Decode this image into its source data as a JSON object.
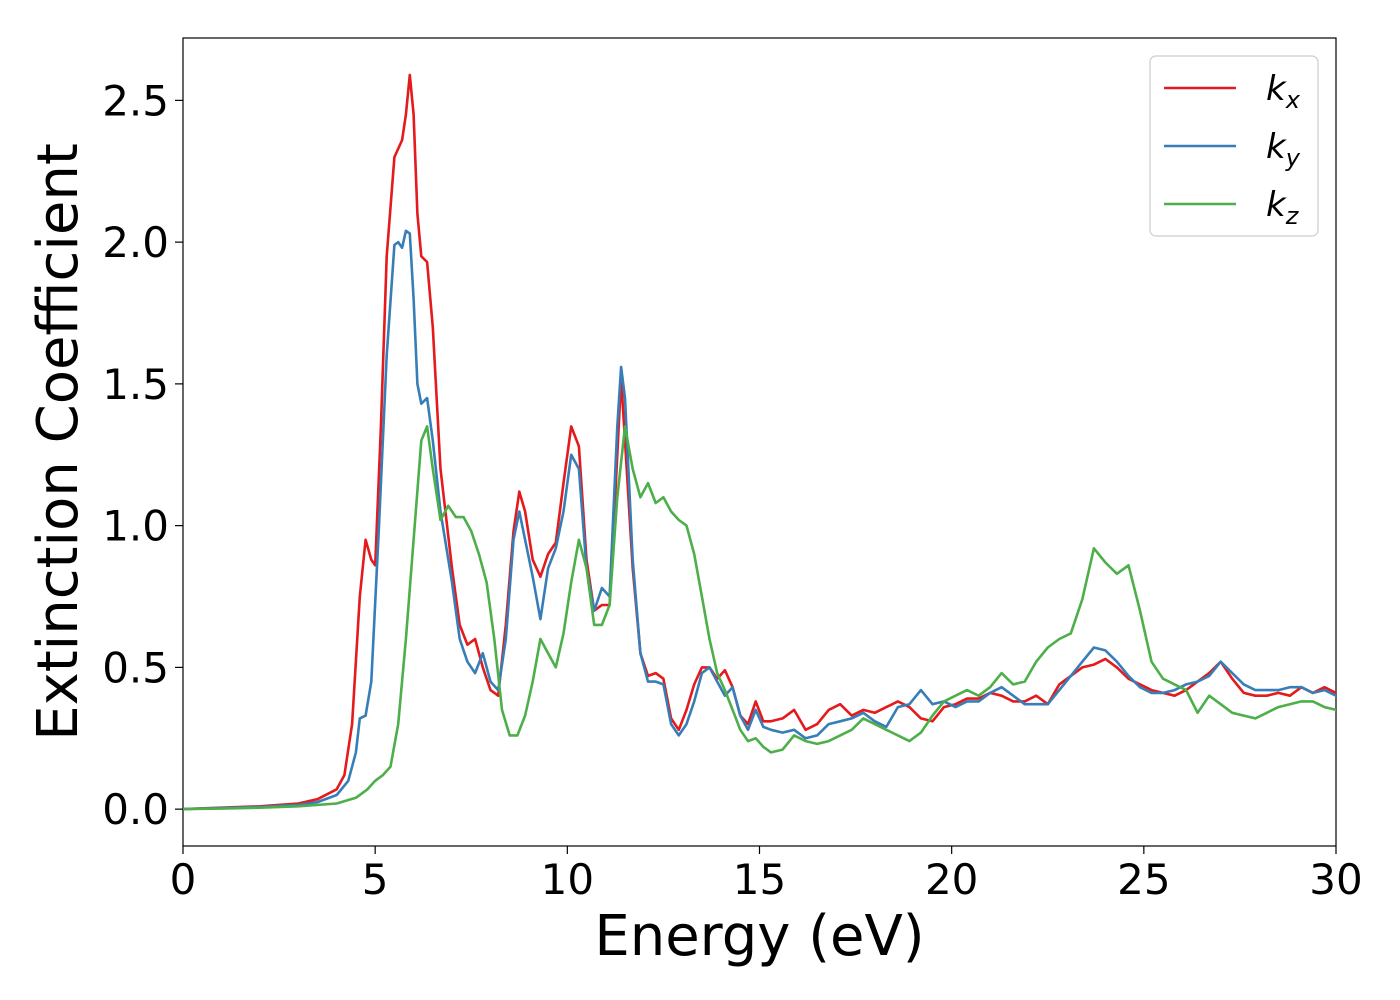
{
  "chart_data": {
    "type": "line",
    "title": "",
    "xlabel": "Energy (eV)",
    "ylabel": "Extinction Coefficient",
    "xlim": [
      0,
      30
    ],
    "ylim": [
      -0.13,
      2.72
    ],
    "xticks": [
      0,
      5,
      10,
      15,
      20,
      25,
      30
    ],
    "yticks": [
      0.0,
      0.5,
      1.0,
      1.5,
      2.0,
      2.5
    ],
    "grid": false,
    "legend_position": "top-right",
    "series": [
      {
        "name": "k",
        "subscript": "x",
        "color": "#e41a1c",
        "x": [
          0,
          1,
          2,
          3,
          3.5,
          4,
          4.2,
          4.4,
          4.6,
          4.75,
          4.9,
          5.0,
          5.15,
          5.3,
          5.5,
          5.7,
          5.8,
          5.9,
          6.0,
          6.1,
          6.2,
          6.35,
          6.5,
          6.7,
          7.0,
          7.2,
          7.4,
          7.6,
          7.8,
          8.0,
          8.2,
          8.4,
          8.6,
          8.75,
          8.9,
          9.1,
          9.3,
          9.5,
          9.7,
          9.9,
          10.1,
          10.3,
          10.5,
          10.7,
          10.9,
          11.1,
          11.3,
          11.4,
          11.5,
          11.7,
          11.9,
          12.1,
          12.3,
          12.5,
          12.7,
          12.9,
          13.1,
          13.3,
          13.5,
          13.7,
          13.9,
          14.1,
          14.3,
          14.5,
          14.7,
          14.9,
          15.1,
          15.3,
          15.6,
          15.9,
          16.2,
          16.5,
          16.8,
          17.1,
          17.4,
          17.7,
          18.0,
          18.3,
          18.6,
          18.9,
          19.2,
          19.5,
          19.8,
          20.1,
          20.4,
          20.7,
          21.0,
          21.3,
          21.6,
          21.9,
          22.2,
          22.5,
          22.8,
          23.1,
          23.4,
          23.7,
          24.0,
          24.3,
          24.6,
          24.9,
          25.2,
          25.5,
          25.8,
          26.1,
          26.4,
          26.7,
          27.0,
          27.3,
          27.6,
          27.9,
          28.2,
          28.5,
          28.8,
          29.1,
          29.4,
          29.7,
          30
        ],
        "y": [
          0.0,
          0.005,
          0.01,
          0.02,
          0.035,
          0.07,
          0.12,
          0.3,
          0.75,
          0.95,
          0.88,
          0.86,
          1.35,
          1.95,
          2.3,
          2.36,
          2.45,
          2.59,
          2.45,
          2.1,
          1.95,
          1.93,
          1.7,
          1.2,
          0.85,
          0.65,
          0.58,
          0.6,
          0.5,
          0.42,
          0.4,
          0.65,
          0.98,
          1.12,
          1.05,
          0.88,
          0.82,
          0.9,
          0.94,
          1.15,
          1.35,
          1.28,
          0.88,
          0.7,
          0.72,
          0.72,
          1.25,
          1.52,
          1.3,
          0.85,
          0.55,
          0.47,
          0.48,
          0.46,
          0.32,
          0.28,
          0.35,
          0.44,
          0.5,
          0.5,
          0.46,
          0.49,
          0.43,
          0.33,
          0.3,
          0.38,
          0.31,
          0.31,
          0.32,
          0.35,
          0.28,
          0.3,
          0.35,
          0.37,
          0.33,
          0.35,
          0.34,
          0.36,
          0.38,
          0.36,
          0.32,
          0.31,
          0.36,
          0.37,
          0.39,
          0.39,
          0.41,
          0.4,
          0.38,
          0.38,
          0.4,
          0.37,
          0.44,
          0.47,
          0.5,
          0.51,
          0.53,
          0.5,
          0.46,
          0.44,
          0.42,
          0.41,
          0.4,
          0.42,
          0.45,
          0.48,
          0.52,
          0.46,
          0.41,
          0.4,
          0.4,
          0.41,
          0.4,
          0.43,
          0.41,
          0.43,
          0.41
        ]
      },
      {
        "name": "k",
        "subscript": "y",
        "color": "#377eb8",
        "x": [
          0,
          1,
          2,
          3,
          3.5,
          4,
          4.3,
          4.5,
          4.6,
          4.75,
          4.9,
          5.1,
          5.3,
          5.5,
          5.6,
          5.7,
          5.8,
          5.9,
          6.0,
          6.1,
          6.2,
          6.35,
          6.5,
          6.7,
          7.0,
          7.2,
          7.4,
          7.6,
          7.8,
          8.0,
          8.2,
          8.4,
          8.6,
          8.75,
          8.9,
          9.1,
          9.3,
          9.5,
          9.7,
          9.9,
          10.1,
          10.3,
          10.5,
          10.7,
          10.9,
          11.1,
          11.3,
          11.4,
          11.5,
          11.7,
          11.9,
          12.1,
          12.3,
          12.5,
          12.7,
          12.9,
          13.1,
          13.3,
          13.5,
          13.7,
          13.9,
          14.1,
          14.3,
          14.5,
          14.7,
          14.9,
          15.1,
          15.3,
          15.6,
          15.9,
          16.2,
          16.5,
          16.8,
          17.1,
          17.4,
          17.7,
          18.0,
          18.3,
          18.6,
          18.9,
          19.2,
          19.5,
          19.8,
          20.1,
          20.4,
          20.7,
          21.0,
          21.3,
          21.6,
          21.9,
          22.2,
          22.5,
          22.8,
          23.1,
          23.4,
          23.7,
          24.0,
          24.3,
          24.6,
          24.9,
          25.2,
          25.5,
          25.8,
          26.1,
          26.4,
          26.7,
          27.0,
          27.3,
          27.6,
          27.9,
          28.2,
          28.5,
          28.8,
          29.1,
          29.4,
          29.7,
          30
        ],
        "y": [
          0.0,
          0.004,
          0.008,
          0.015,
          0.025,
          0.05,
          0.1,
          0.2,
          0.32,
          0.33,
          0.45,
          1.0,
          1.6,
          1.99,
          2.0,
          1.98,
          2.04,
          2.03,
          1.8,
          1.5,
          1.43,
          1.45,
          1.3,
          1.05,
          0.8,
          0.6,
          0.52,
          0.48,
          0.55,
          0.45,
          0.42,
          0.6,
          0.95,
          1.05,
          0.95,
          0.82,
          0.67,
          0.85,
          0.92,
          1.05,
          1.25,
          1.2,
          0.85,
          0.7,
          0.78,
          0.75,
          1.35,
          1.56,
          1.45,
          0.88,
          0.55,
          0.45,
          0.45,
          0.44,
          0.3,
          0.26,
          0.3,
          0.38,
          0.48,
          0.5,
          0.45,
          0.4,
          0.43,
          0.33,
          0.28,
          0.35,
          0.29,
          0.28,
          0.27,
          0.28,
          0.25,
          0.26,
          0.3,
          0.31,
          0.32,
          0.34,
          0.31,
          0.29,
          0.36,
          0.37,
          0.42,
          0.37,
          0.38,
          0.36,
          0.38,
          0.38,
          0.41,
          0.43,
          0.4,
          0.37,
          0.37,
          0.37,
          0.42,
          0.47,
          0.52,
          0.57,
          0.56,
          0.52,
          0.47,
          0.43,
          0.41,
          0.41,
          0.42,
          0.44,
          0.45,
          0.47,
          0.52,
          0.48,
          0.44,
          0.42,
          0.42,
          0.42,
          0.43,
          0.43,
          0.41,
          0.42,
          0.4
        ]
      },
      {
        "name": "k",
        "subscript": "z",
        "color": "#4daf4a",
        "x": [
          0,
          1,
          2,
          3,
          4,
          4.5,
          4.8,
          5.0,
          5.2,
          5.4,
          5.6,
          5.8,
          6.0,
          6.2,
          6.35,
          6.5,
          6.7,
          6.9,
          7.1,
          7.3,
          7.5,
          7.7,
          7.9,
          8.1,
          8.3,
          8.5,
          8.7,
          8.9,
          9.1,
          9.3,
          9.5,
          9.7,
          9.9,
          10.1,
          10.3,
          10.5,
          10.7,
          10.9,
          11.1,
          11.3,
          11.5,
          11.7,
          11.9,
          12.1,
          12.3,
          12.5,
          12.7,
          12.9,
          13.1,
          13.3,
          13.5,
          13.7,
          13.9,
          14.1,
          14.3,
          14.5,
          14.7,
          14.9,
          15.1,
          15.3,
          15.6,
          15.9,
          16.2,
          16.5,
          16.8,
          17.1,
          17.4,
          17.7,
          18.0,
          18.3,
          18.6,
          18.9,
          19.2,
          19.5,
          19.8,
          20.1,
          20.4,
          20.7,
          21.0,
          21.3,
          21.6,
          21.9,
          22.2,
          22.5,
          22.8,
          23.1,
          23.4,
          23.7,
          24.0,
          24.3,
          24.6,
          24.9,
          25.2,
          25.5,
          25.8,
          26.1,
          26.4,
          26.7,
          27.0,
          27.3,
          27.6,
          27.9,
          28.2,
          28.5,
          28.8,
          29.1,
          29.4,
          29.7,
          30
        ],
        "y": [
          0.0,
          0.002,
          0.005,
          0.01,
          0.02,
          0.04,
          0.07,
          0.1,
          0.12,
          0.15,
          0.3,
          0.6,
          0.95,
          1.3,
          1.35,
          1.2,
          1.02,
          1.07,
          1.03,
          1.03,
          0.98,
          0.9,
          0.8,
          0.6,
          0.35,
          0.26,
          0.26,
          0.33,
          0.45,
          0.6,
          0.55,
          0.5,
          0.62,
          0.8,
          0.95,
          0.85,
          0.65,
          0.65,
          0.72,
          1.1,
          1.35,
          1.2,
          1.1,
          1.15,
          1.08,
          1.1,
          1.05,
          1.02,
          1.0,
          0.9,
          0.75,
          0.6,
          0.48,
          0.42,
          0.35,
          0.28,
          0.24,
          0.25,
          0.22,
          0.2,
          0.21,
          0.26,
          0.24,
          0.23,
          0.24,
          0.26,
          0.28,
          0.32,
          0.3,
          0.28,
          0.26,
          0.24,
          0.27,
          0.33,
          0.38,
          0.4,
          0.42,
          0.4,
          0.43,
          0.48,
          0.44,
          0.45,
          0.52,
          0.57,
          0.6,
          0.62,
          0.74,
          0.92,
          0.87,
          0.83,
          0.86,
          0.7,
          0.52,
          0.46,
          0.44,
          0.42,
          0.34,
          0.4,
          0.37,
          0.34,
          0.33,
          0.32,
          0.34,
          0.36,
          0.37,
          0.38,
          0.38,
          0.36,
          0.35
        ]
      }
    ]
  }
}
